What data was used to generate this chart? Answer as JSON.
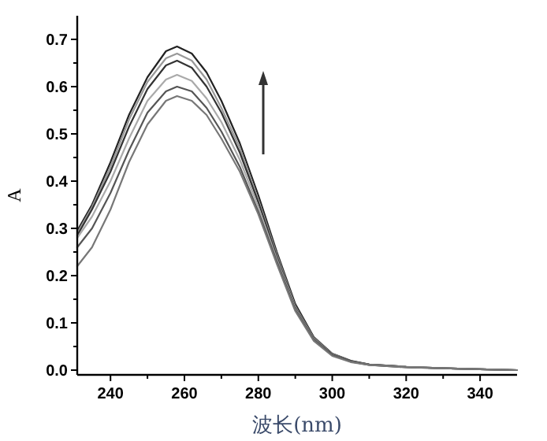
{
  "chart_data": {
    "type": "line",
    "xlabel": "波长(nm)",
    "ylabel": "A",
    "x": [
      231,
      235,
      240,
      245,
      250,
      255,
      258,
      262,
      266,
      270,
      275,
      280,
      285,
      290,
      295,
      300,
      305,
      310,
      320,
      330,
      340,
      350
    ],
    "series": [
      {
        "color": "#222222",
        "values": [
          0.295,
          0.35,
          0.44,
          0.54,
          0.62,
          0.675,
          0.685,
          0.67,
          0.63,
          0.57,
          0.48,
          0.37,
          0.25,
          0.14,
          0.07,
          0.035,
          0.02,
          0.012,
          0.007,
          0.004,
          0.002,
          0.0
        ]
      },
      {
        "color": "#999999",
        "values": [
          0.29,
          0.345,
          0.43,
          0.53,
          0.61,
          0.66,
          0.67,
          0.655,
          0.615,
          0.555,
          0.47,
          0.36,
          0.245,
          0.135,
          0.068,
          0.034,
          0.019,
          0.012,
          0.007,
          0.004,
          0.002,
          0.0
        ]
      },
      {
        "color": "#333333",
        "values": [
          0.285,
          0.34,
          0.42,
          0.515,
          0.595,
          0.645,
          0.655,
          0.64,
          0.6,
          0.545,
          0.46,
          0.355,
          0.24,
          0.132,
          0.066,
          0.033,
          0.019,
          0.012,
          0.007,
          0.004,
          0.002,
          0.0
        ]
      },
      {
        "color": "#aaaaaa",
        "values": [
          0.28,
          0.325,
          0.4,
          0.49,
          0.57,
          0.615,
          0.625,
          0.612,
          0.575,
          0.525,
          0.445,
          0.345,
          0.235,
          0.13,
          0.065,
          0.032,
          0.018,
          0.011,
          0.007,
          0.004,
          0.002,
          0.0
        ]
      },
      {
        "color": "#555555",
        "values": [
          0.26,
          0.3,
          0.375,
          0.465,
          0.545,
          0.59,
          0.6,
          0.59,
          0.555,
          0.505,
          0.43,
          0.335,
          0.23,
          0.128,
          0.064,
          0.032,
          0.018,
          0.011,
          0.006,
          0.004,
          0.002,
          0.0
        ]
      },
      {
        "color": "#777777",
        "values": [
          0.22,
          0.26,
          0.34,
          0.44,
          0.52,
          0.57,
          0.58,
          0.57,
          0.54,
          0.49,
          0.42,
          0.33,
          0.225,
          0.125,
          0.062,
          0.03,
          0.017,
          0.011,
          0.006,
          0.004,
          0.002,
          0.0
        ]
      }
    ],
    "xlim": [
      231,
      350
    ],
    "ylim": [
      -0.01,
      0.75
    ],
    "xticks": [
      240,
      {
        "value": 250,
        "label": null
      },
      260,
      {
        "value": 270,
        "label": null
      },
      280,
      {
        "value": 290,
        "label": null
      },
      300,
      {
        "value": 310,
        "label": null
      },
      320,
      {
        "value": 330,
        "label": null
      },
      340
    ],
    "yticks": [
      {
        "value": 0.0,
        "label": "0.0"
      },
      {
        "value": 0.05,
        "label": null
      },
      0.1,
      {
        "value": 0.15,
        "label": null
      },
      0.2,
      {
        "value": 0.25,
        "label": null
      },
      0.3,
      {
        "value": 0.35,
        "label": null
      },
      0.4,
      {
        "value": 0.45,
        "label": null
      },
      0.5,
      {
        "value": 0.55,
        "label": null
      },
      0.6,
      {
        "value": 0.65,
        "label": null
      },
      0.7
    ],
    "grid": false,
    "marker": "none",
    "line_style": "solid"
  }
}
